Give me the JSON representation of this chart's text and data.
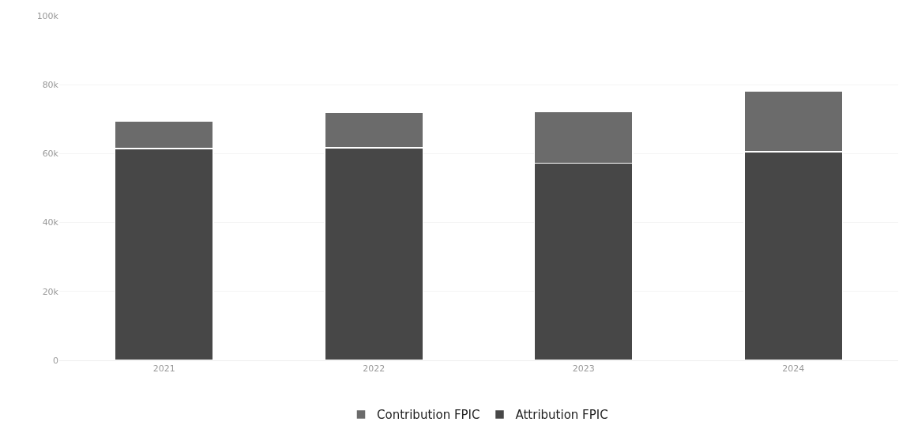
{
  "chart_data": {
    "type": "bar",
    "stacked": true,
    "categories": [
      "2021",
      "2022",
      "2023",
      "2024"
    ],
    "series": [
      {
        "name": "Attribution FPIC",
        "color": "#474747",
        "values": [
          61.5,
          61.7,
          57.2,
          60.6
        ]
      },
      {
        "name": "Contribution FPIC",
        "color": "#6b6b6b",
        "values": [
          8.0,
          10.2,
          15.0,
          17.6
        ]
      }
    ],
    "ylim": [
      0,
      100
    ],
    "yticks": [
      {
        "value": 0,
        "label": "0"
      },
      {
        "value": 20,
        "label": "20k"
      },
      {
        "value": 40,
        "label": "40k"
      },
      {
        "value": 60,
        "label": "60k"
      },
      {
        "value": 80,
        "label": "80k"
      },
      {
        "value": 100,
        "label": "100k"
      }
    ],
    "grid": "y",
    "legend": "bottom"
  }
}
